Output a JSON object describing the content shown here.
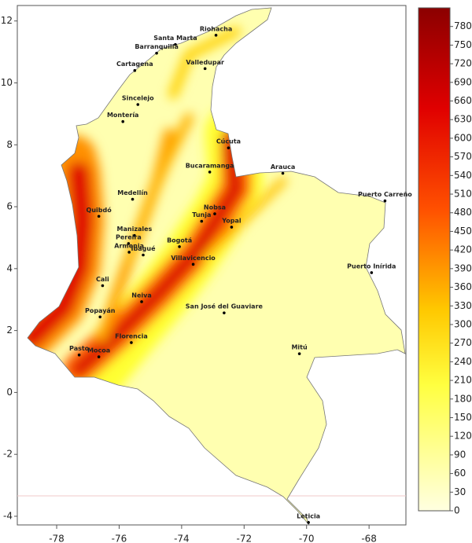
{
  "chart_data": {
    "type": "map",
    "xlim": [
      -79.26,
      -66.82
    ],
    "ylim": [
      -4.28,
      12.5
    ],
    "xticks": [
      -78,
      -76,
      -74,
      -72,
      -70,
      -68
    ],
    "yticks": [
      -4,
      -2,
      0,
      2,
      4,
      6,
      8,
      10,
      12
    ],
    "cities": [
      {
        "name": "Riohacha",
        "lon": -72.9,
        "lat": 11.54
      },
      {
        "name": "Santa Marta",
        "lon": -74.2,
        "lat": 11.24
      },
      {
        "name": "Barranquilla",
        "lon": -74.8,
        "lat": 10.96
      },
      {
        "name": "Cartagena",
        "lon": -75.5,
        "lat": 10.4
      },
      {
        "name": "Valledupar",
        "lon": -73.25,
        "lat": 10.46
      },
      {
        "name": "Sincelejo",
        "lon": -75.4,
        "lat": 9.3
      },
      {
        "name": "Montería",
        "lon": -75.88,
        "lat": 8.75
      },
      {
        "name": "Cúcuta",
        "lon": -72.5,
        "lat": 7.9
      },
      {
        "name": "Bucaramanga",
        "lon": -73.1,
        "lat": 7.12
      },
      {
        "name": "Arauca",
        "lon": -70.76,
        "lat": 7.08
      },
      {
        "name": "Puerto Carreño",
        "lon": -67.49,
        "lat": 6.19
      },
      {
        "name": "Medellín",
        "lon": -75.57,
        "lat": 6.24
      },
      {
        "name": "Quibdó",
        "lon": -76.65,
        "lat": 5.69
      },
      {
        "name": "Nobsa",
        "lon": -72.94,
        "lat": 5.77
      },
      {
        "name": "Tunja",
        "lon": -73.36,
        "lat": 5.53
      },
      {
        "name": "Yopal",
        "lon": -72.4,
        "lat": 5.34
      },
      {
        "name": "Manizales",
        "lon": -75.51,
        "lat": 5.07
      },
      {
        "name": "Pereira",
        "lon": -75.7,
        "lat": 4.81
      },
      {
        "name": "Armenia",
        "lon": -75.68,
        "lat": 4.53
      },
      {
        "name": "Ibagué",
        "lon": -75.23,
        "lat": 4.44
      },
      {
        "name": "Bogotá",
        "lon": -74.07,
        "lat": 4.71
      },
      {
        "name": "Villavicencio",
        "lon": -73.63,
        "lat": 4.14
      },
      {
        "name": "Puerto Inírida",
        "lon": -67.92,
        "lat": 3.87
      },
      {
        "name": "Cali",
        "lon": -76.53,
        "lat": 3.45
      },
      {
        "name": "Neiva",
        "lon": -75.28,
        "lat": 2.93
      },
      {
        "name": "San José del Guaviare",
        "lon": -72.64,
        "lat": 2.57
      },
      {
        "name": "Popayán",
        "lon": -76.61,
        "lat": 2.44
      },
      {
        "name": "Florencia",
        "lon": -75.61,
        "lat": 1.61
      },
      {
        "name": "Mitú",
        "lon": -70.23,
        "lat": 1.25
      },
      {
        "name": "Pasto",
        "lon": -77.28,
        "lat": 1.21
      },
      {
        "name": "Mocoa",
        "lon": -76.65,
        "lat": 1.15
      },
      {
        "name": "Leticia",
        "lon": -69.94,
        "lat": -4.2
      }
    ],
    "colorbar": {
      "lim": [
        0,
        810
      ],
      "ticks": [
        0,
        30,
        60,
        90,
        120,
        150,
        180,
        210,
        240,
        270,
        300,
        330,
        360,
        390,
        420,
        450,
        480,
        510,
        540,
        570,
        600,
        630,
        660,
        690,
        720,
        750,
        780
      ]
    }
  }
}
